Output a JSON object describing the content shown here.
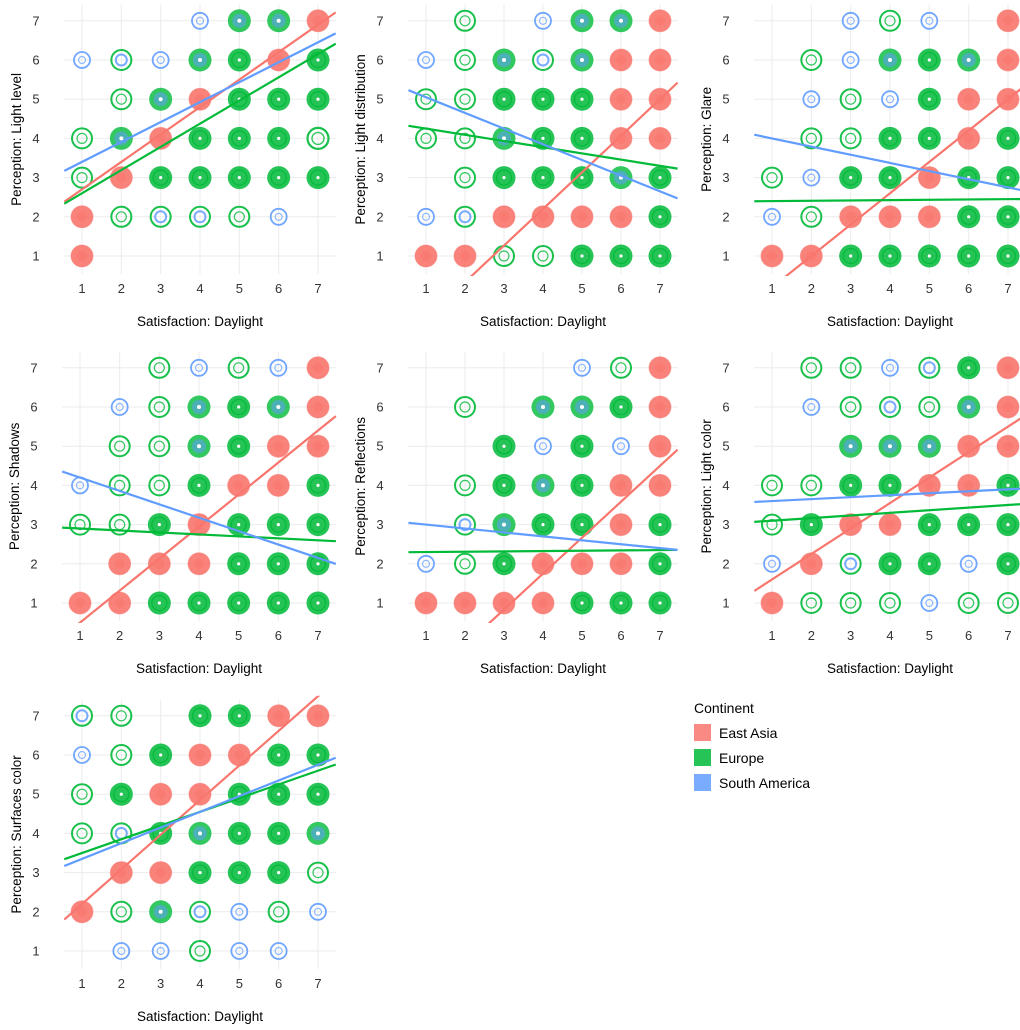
{
  "chart_data": {
    "type": "scatter",
    "legend": {
      "title": "Continent",
      "placement": "right",
      "entries": [
        {
          "name": "East Asia",
          "color": "#F8766D"
        },
        {
          "name": "Europe",
          "color": "#00BA38"
        },
        {
          "name": "South America",
          "color": "#619CFF"
        }
      ]
    },
    "grid": true,
    "panels": [
      {
        "xlabel": "Satisfaction: Daylight",
        "ylabel": "Perception: Light level",
        "xlim": [
          1,
          7
        ],
        "ylim": [
          1,
          7
        ],
        "x_ticks": [
          "1",
          "2",
          "3",
          "4",
          "5",
          "6",
          "7"
        ],
        "y_ticks": [
          "1",
          "2",
          "3",
          "4",
          "5",
          "6",
          "7"
        ],
        "rows": [
          {
            "y": 7,
            "cells": [
              "",
              "",
              "",
              "b",
              "mb",
              "mb",
              "r"
            ]
          },
          {
            "y": 6,
            "cells": [
              "b",
              "gb",
              "b",
              "mb",
              "m",
              "r",
              "m"
            ]
          },
          {
            "y": 5,
            "cells": [
              "",
              "g",
              "mb",
              "r",
              "m",
              "m",
              "m"
            ]
          },
          {
            "y": 4,
            "cells": [
              "g",
              "mb",
              "r",
              "m",
              "m",
              "m",
              "gr"
            ]
          },
          {
            "y": 3,
            "cells": [
              "g",
              "r",
              "m",
              "m",
              "m",
              "m",
              "m"
            ]
          },
          {
            "y": 2,
            "cells": [
              "r",
              "g",
              "gb",
              "gb",
              "g",
              "b",
              ""
            ]
          },
          {
            "y": 1,
            "cells": [
              "r",
              "",
              "",
              "",
              "",
              "",
              ""
            ]
          }
        ],
        "regression": [
          {
            "series": "East Asia",
            "y_at_x1": 2.7,
            "y_at_x7": 6.9
          },
          {
            "series": "Europe",
            "y_at_x1": 2.6,
            "y_at_x7": 6.15
          },
          {
            "series": "South America",
            "y_at_x1": 3.4,
            "y_at_x7": 6.45
          }
        ]
      },
      {
        "xlabel": "Satisfaction: Daylight",
        "ylabel": "Perception: Light distribution",
        "xlim": [
          1,
          7
        ],
        "ylim": [
          1,
          7
        ],
        "x_ticks": [
          "1",
          "2",
          "3",
          "4",
          "5",
          "6",
          "7"
        ],
        "y_ticks": [
          "1",
          "2",
          "3",
          "4",
          "5",
          "6",
          "7"
        ],
        "rows": [
          {
            "y": 7,
            "cells": [
              "",
              "g",
              "",
              "b",
              "mb",
              "mb",
              "r"
            ]
          },
          {
            "y": 6,
            "cells": [
              "b",
              "g",
              "mb",
              "gb",
              "mb",
              "r",
              "r"
            ]
          },
          {
            "y": 5,
            "cells": [
              "g",
              "g",
              "m",
              "m",
              "m",
              "r",
              "r"
            ]
          },
          {
            "y": 4,
            "cells": [
              "g",
              "g",
              "mb",
              "m",
              "m",
              "r",
              "r"
            ]
          },
          {
            "y": 3,
            "cells": [
              "",
              "g",
              "m",
              "m",
              "m",
              "mb",
              "m"
            ]
          },
          {
            "y": 2,
            "cells": [
              "b",
              "gb",
              "r",
              "r",
              "r",
              "r",
              "m"
            ]
          },
          {
            "y": 1,
            "cells": [
              "r",
              "r",
              "g",
              "g",
              "m",
              "m",
              "m"
            ]
          }
        ],
        "regression": [
          {
            "series": "East Asia",
            "y_at_x1": -0.6,
            "y_at_x7": 5.0
          },
          {
            "series": "Europe",
            "y_at_x1": 4.25,
            "y_at_x7": 3.3
          },
          {
            "series": "South America",
            "y_at_x1": 5.05,
            "y_at_x7": 2.65
          }
        ]
      },
      {
        "xlabel": "Satisfaction: Daylight",
        "ylabel": "Perception: Glare",
        "xlim": [
          1,
          7
        ],
        "ylim": [
          1,
          7
        ],
        "x_ticks": [
          "1",
          "2",
          "3",
          "4",
          "5",
          "6",
          "7"
        ],
        "y_ticks": [
          "1",
          "2",
          "3",
          "4",
          "5",
          "6",
          "7"
        ],
        "rows": [
          {
            "y": 7,
            "cells": [
              "",
              "",
              "b",
              "g",
              "b",
              "",
              "r"
            ]
          },
          {
            "y": 6,
            "cells": [
              "",
              "g",
              "b",
              "mb",
              "m",
              "mb",
              "r"
            ]
          },
          {
            "y": 5,
            "cells": [
              "",
              "b",
              "g",
              "b",
              "m",
              "r",
              "r"
            ]
          },
          {
            "y": 4,
            "cells": [
              "",
              "g",
              "g",
              "m",
              "m",
              "r",
              "m"
            ]
          },
          {
            "y": 3,
            "cells": [
              "g",
              "b",
              "m",
              "m",
              "r",
              "m",
              "m"
            ]
          },
          {
            "y": 2,
            "cells": [
              "b",
              "g",
              "r",
              "r",
              "r",
              "m",
              "m"
            ]
          },
          {
            "y": 1,
            "cells": [
              "r",
              "r",
              "m",
              "m",
              "m",
              "m",
              "m"
            ]
          }
        ],
        "regression": [
          {
            "series": "East Asia",
            "y_at_x1": 0.2,
            "y_at_x7": 5.0
          },
          {
            "series": "Europe",
            "y_at_x1": 2.4,
            "y_at_x7": 2.45
          },
          {
            "series": "South America",
            "y_at_x1": 4.0,
            "y_at_x7": 2.75
          }
        ]
      },
      {
        "xlabel": "Satisfaction: Daylight",
        "ylabel": "Perception: Shadows",
        "xlim": [
          1,
          7
        ],
        "ylim": [
          1,
          7
        ],
        "x_ticks": [
          "1",
          "2",
          "3",
          "4",
          "5",
          "6",
          "7"
        ],
        "y_ticks": [
          "1",
          "2",
          "3",
          "4",
          "5",
          "6",
          "7"
        ],
        "rows": [
          {
            "y": 7,
            "cells": [
              "",
              "",
              "g",
              "b",
              "g",
              "b",
              "r"
            ]
          },
          {
            "y": 6,
            "cells": [
              "",
              "b",
              "g",
              "mb",
              "m",
              "mb",
              "r"
            ]
          },
          {
            "y": 5,
            "cells": [
              "",
              "g",
              "g",
              "mb",
              "m",
              "r",
              "r"
            ]
          },
          {
            "y": 4,
            "cells": [
              "b",
              "g",
              "g",
              "m",
              "r",
              "r",
              "m"
            ]
          },
          {
            "y": 3,
            "cells": [
              "g",
              "g",
              "m",
              "r",
              "m",
              "m",
              "m"
            ]
          },
          {
            "y": 2,
            "cells": [
              "",
              "r",
              "r",
              "r",
              "m",
              "m",
              "m"
            ]
          },
          {
            "y": 1,
            "cells": [
              "r",
              "r",
              "m",
              "m",
              "m",
              "m",
              "m"
            ]
          }
        ],
        "regression": [
          {
            "series": "East Asia",
            "y_at_x1": 0.5,
            "y_at_x7": 5.4
          },
          {
            "series": "Europe",
            "y_at_x1": 2.9,
            "y_at_x7": 2.6
          },
          {
            "series": "South America",
            "y_at_x1": 4.2,
            "y_at_x7": 2.15
          }
        ]
      },
      {
        "xlabel": "Satisfaction: Daylight",
        "ylabel": "Perception: Reflections",
        "xlim": [
          1,
          7
        ],
        "ylim": [
          1,
          7
        ],
        "x_ticks": [
          "1",
          "2",
          "3",
          "4",
          "5",
          "6",
          "7"
        ],
        "y_ticks": [
          "1",
          "2",
          "3",
          "4",
          "5",
          "6",
          "7"
        ],
        "rows": [
          {
            "y": 7,
            "cells": [
              "",
              "",
              "",
              "",
              "b",
              "g",
              "r"
            ]
          },
          {
            "y": 6,
            "cells": [
              "",
              "g",
              "",
              "mb",
              "mb",
              "m",
              "r"
            ]
          },
          {
            "y": 5,
            "cells": [
              "",
              "",
              "m",
              "b",
              "m",
              "b",
              "r"
            ]
          },
          {
            "y": 4,
            "cells": [
              "",
              "g",
              "m",
              "mb",
              "m",
              "r",
              "r"
            ]
          },
          {
            "y": 3,
            "cells": [
              "",
              "gb",
              "mb",
              "m",
              "m",
              "r",
              "m"
            ]
          },
          {
            "y": 2,
            "cells": [
              "b",
              "g",
              "m",
              "r",
              "r",
              "r",
              "m"
            ]
          },
          {
            "y": 1,
            "cells": [
              "r",
              "r",
              "r",
              "r",
              "m",
              "m",
              "m"
            ]
          }
        ],
        "regression": [
          {
            "series": "East Asia",
            "y_at_x1": -1.0,
            "y_at_x7": 4.5
          },
          {
            "series": "Europe",
            "y_at_x1": 2.3,
            "y_at_x7": 2.35
          },
          {
            "series": "South America",
            "y_at_x1": 3.0,
            "y_at_x7": 2.4
          }
        ]
      },
      {
        "xlabel": "Satisfaction: Daylight",
        "ylabel": "Perception: Light color",
        "xlim": [
          1,
          7
        ],
        "ylim": [
          1,
          7
        ],
        "x_ticks": [
          "1",
          "2",
          "3",
          "4",
          "5",
          "6",
          "7"
        ],
        "y_ticks": [
          "1",
          "2",
          "3",
          "4",
          "5",
          "6",
          "7"
        ],
        "rows": [
          {
            "y": 7,
            "cells": [
              "",
              "g",
              "g",
              "b",
              "gb",
              "m",
              "r"
            ]
          },
          {
            "y": 6,
            "cells": [
              "",
              "b",
              "g",
              "gb",
              "g",
              "mb",
              "r"
            ]
          },
          {
            "y": 5,
            "cells": [
              "",
              "",
              "mb",
              "mb",
              "mb",
              "r",
              "r"
            ]
          },
          {
            "y": 4,
            "cells": [
              "g",
              "g",
              "m",
              "m",
              "r",
              "r",
              "m"
            ]
          },
          {
            "y": 3,
            "cells": [
              "g",
              "m",
              "r",
              "r",
              "m",
              "m",
              "m"
            ]
          },
          {
            "y": 2,
            "cells": [
              "b",
              "r",
              "gb",
              "m",
              "m",
              "b",
              "m"
            ]
          },
          {
            "y": 1,
            "cells": [
              "r",
              "g",
              "g",
              "g",
              "b",
              "g",
              "g"
            ]
          }
        ],
        "regression": [
          {
            "series": "East Asia",
            "y_at_x1": 1.6,
            "y_at_x7": 5.5
          },
          {
            "series": "Europe",
            "y_at_x1": 3.1,
            "y_at_x7": 3.5
          },
          {
            "series": "South America",
            "y_at_x1": 3.6,
            "y_at_x7": 3.9
          }
        ]
      },
      {
        "xlabel": "Satisfaction: Daylight",
        "ylabel": "Perception: Surfaces color",
        "xlim": [
          1,
          7
        ],
        "ylim": [
          1,
          7
        ],
        "x_ticks": [
          "1",
          "2",
          "3",
          "4",
          "5",
          "6",
          "7"
        ],
        "y_ticks": [
          "1",
          "2",
          "3",
          "4",
          "5",
          "6",
          "7"
        ],
        "rows": [
          {
            "y": 7,
            "cells": [
              "gb",
              "g",
              "",
              "m",
              "m",
              "r",
              "r"
            ]
          },
          {
            "y": 6,
            "cells": [
              "b",
              "g",
              "m",
              "r",
              "r",
              "m",
              "m"
            ]
          },
          {
            "y": 5,
            "cells": [
              "g",
              "m",
              "r",
              "r",
              "m",
              "m",
              "m"
            ]
          },
          {
            "y": 4,
            "cells": [
              "g",
              "gb",
              "m",
              "mb",
              "m",
              "m",
              "mb"
            ]
          },
          {
            "y": 3,
            "cells": [
              "",
              "r",
              "r",
              "m",
              "m",
              "m",
              "g"
            ]
          },
          {
            "y": 2,
            "cells": [
              "r",
              "g",
              "mb",
              "gb",
              "b",
              "g",
              "b"
            ]
          },
          {
            "y": 1,
            "cells": [
              "",
              "b",
              "b",
              "g",
              "b",
              "b",
              ""
            ]
          }
        ],
        "regression": [
          {
            "series": "East Asia",
            "y_at_x1": 2.2,
            "y_at_x7": 7.5
          },
          {
            "series": "Europe",
            "y_at_x1": 3.5,
            "y_at_x7": 5.6
          },
          {
            "series": "South America",
            "y_at_x1": 3.35,
            "y_at_x7": 5.75
          }
        ]
      }
    ]
  }
}
